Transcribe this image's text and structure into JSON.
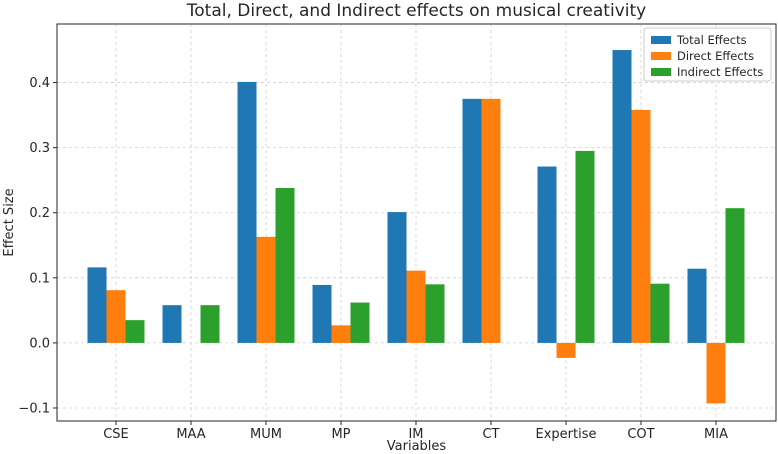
{
  "chart_data": {
    "type": "bar",
    "title": "Total, Direct, and Indirect effects on musical creativity",
    "xlabel": "Variables",
    "ylabel": "Effect Size",
    "categories": [
      "CSE",
      "MAA",
      "MUM",
      "MP",
      "IM",
      "CT",
      "Expertise",
      "COT",
      "MIA"
    ],
    "series": [
      {
        "name": "Total Effects",
        "color": "#1f77b4",
        "values": [
          0.116,
          0.058,
          0.401,
          0.089,
          0.201,
          0.375,
          0.271,
          0.45,
          0.114
        ]
      },
      {
        "name": "Direct Effects",
        "color": "#ff7f0e",
        "values": [
          0.081,
          0.0,
          0.163,
          0.027,
          0.111,
          0.375,
          -0.023,
          0.358,
          -0.093
        ]
      },
      {
        "name": "Indirect Effects",
        "color": "#2ca02c",
        "values": [
          0.035,
          0.058,
          0.238,
          0.062,
          0.09,
          0.0,
          0.295,
          0.091,
          0.207
        ]
      }
    ],
    "ylim": [
      -0.12,
      0.49
    ],
    "yticks": [
      -0.1,
      0.0,
      0.1,
      0.2,
      0.3,
      0.4
    ],
    "ytick_labels": [
      "−0.1",
      "0.0",
      "0.1",
      "0.2",
      "0.3",
      "0.4"
    ],
    "grid": true,
    "legend_position": "top-right"
  }
}
